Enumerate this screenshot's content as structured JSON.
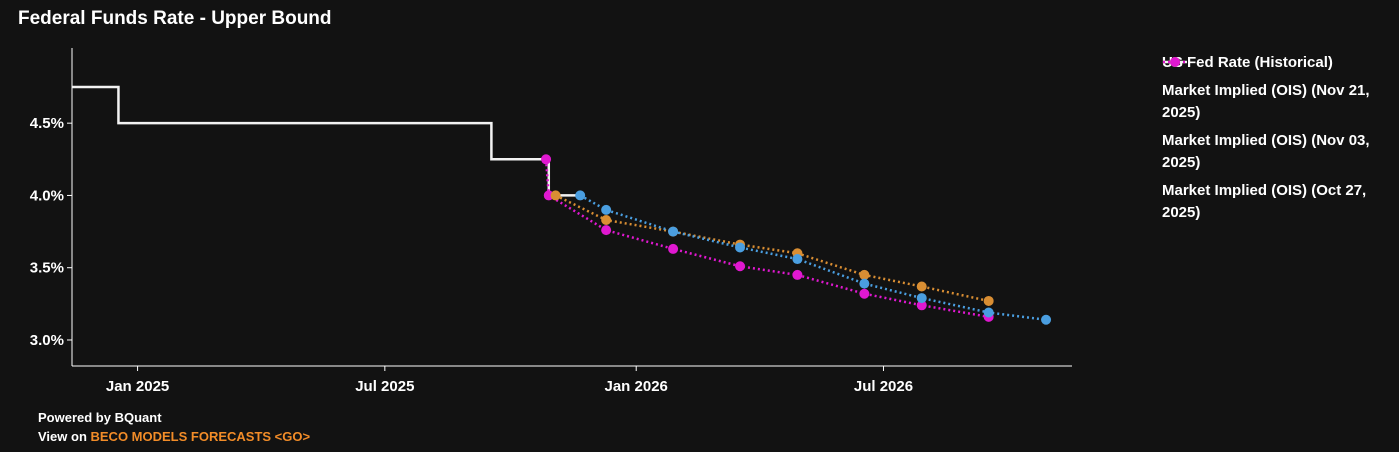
{
  "chart_data": {
    "type": "line",
    "title": "Federal Funds Rate - Upper Bound",
    "xlim": [
      "2024-11-14",
      "2026-11-16"
    ],
    "xticks": [
      {
        "value": "2025-01-01",
        "label": "Jan 2025"
      },
      {
        "value": "2025-07-01",
        "label": "Jul 2025"
      },
      {
        "value": "2026-01-01",
        "label": "Jan 2026"
      },
      {
        "value": "2026-07-01",
        "label": "Jul 2026"
      }
    ],
    "ylim": [
      2.82,
      5.02
    ],
    "yticks": [
      {
        "value": 3.0,
        "label": "3.0%"
      },
      {
        "value": 3.5,
        "label": "3.5%"
      },
      {
        "value": 4.0,
        "label": "4.0%"
      },
      {
        "value": 4.5,
        "label": "4.5%"
      }
    ],
    "series": [
      {
        "name": "US Fed Rate (Historical)",
        "color": "#f2f2f2",
        "style": "step",
        "x": [
          "2024-11-14",
          "2024-12-18",
          "2025-09-17",
          "2025-10-29",
          "2025-11-21"
        ],
        "values": [
          4.75,
          4.5,
          4.25,
          4.0,
          4.0
        ]
      },
      {
        "name": "Market Implied (OIS) (Nov 21, 2025)",
        "color": "#4a9ee0",
        "style": "dotted",
        "x": [
          "2025-11-21",
          "2025-12-10",
          "2026-01-28",
          "2026-03-18",
          "2026-04-29",
          "2026-06-17",
          "2026-07-29",
          "2026-09-16",
          "2026-10-28"
        ],
        "values": [
          4.0,
          3.9,
          3.75,
          3.64,
          3.56,
          3.39,
          3.29,
          3.19,
          3.14
        ]
      },
      {
        "name": "Market Implied (OIS) (Nov 03, 2025)",
        "color": "#d98e33",
        "style": "dotted",
        "x": [
          "2025-11-03",
          "2025-12-10",
          "2026-01-28",
          "2026-03-18",
          "2026-04-29",
          "2026-06-17",
          "2026-07-29",
          "2026-09-16"
        ],
        "values": [
          4.0,
          3.83,
          3.75,
          3.66,
          3.6,
          3.45,
          3.37,
          3.27
        ]
      },
      {
        "name": "Market Implied (OIS) (Oct 27, 2025)",
        "color": "#e018d0",
        "style": "dotted",
        "x": [
          "2025-10-27",
          "2025-10-29",
          "2025-12-10",
          "2026-01-28",
          "2026-03-18",
          "2026-04-29",
          "2026-06-17",
          "2026-07-29",
          "2026-09-16"
        ],
        "values": [
          4.25,
          4.0,
          3.76,
          3.63,
          3.51,
          3.45,
          3.32,
          3.24,
          3.16
        ]
      }
    ],
    "footer": {
      "line1": "Powered by BQuant",
      "prefix": "View on ",
      "link": "BECO MODELS FORECASTS <GO>"
    }
  }
}
